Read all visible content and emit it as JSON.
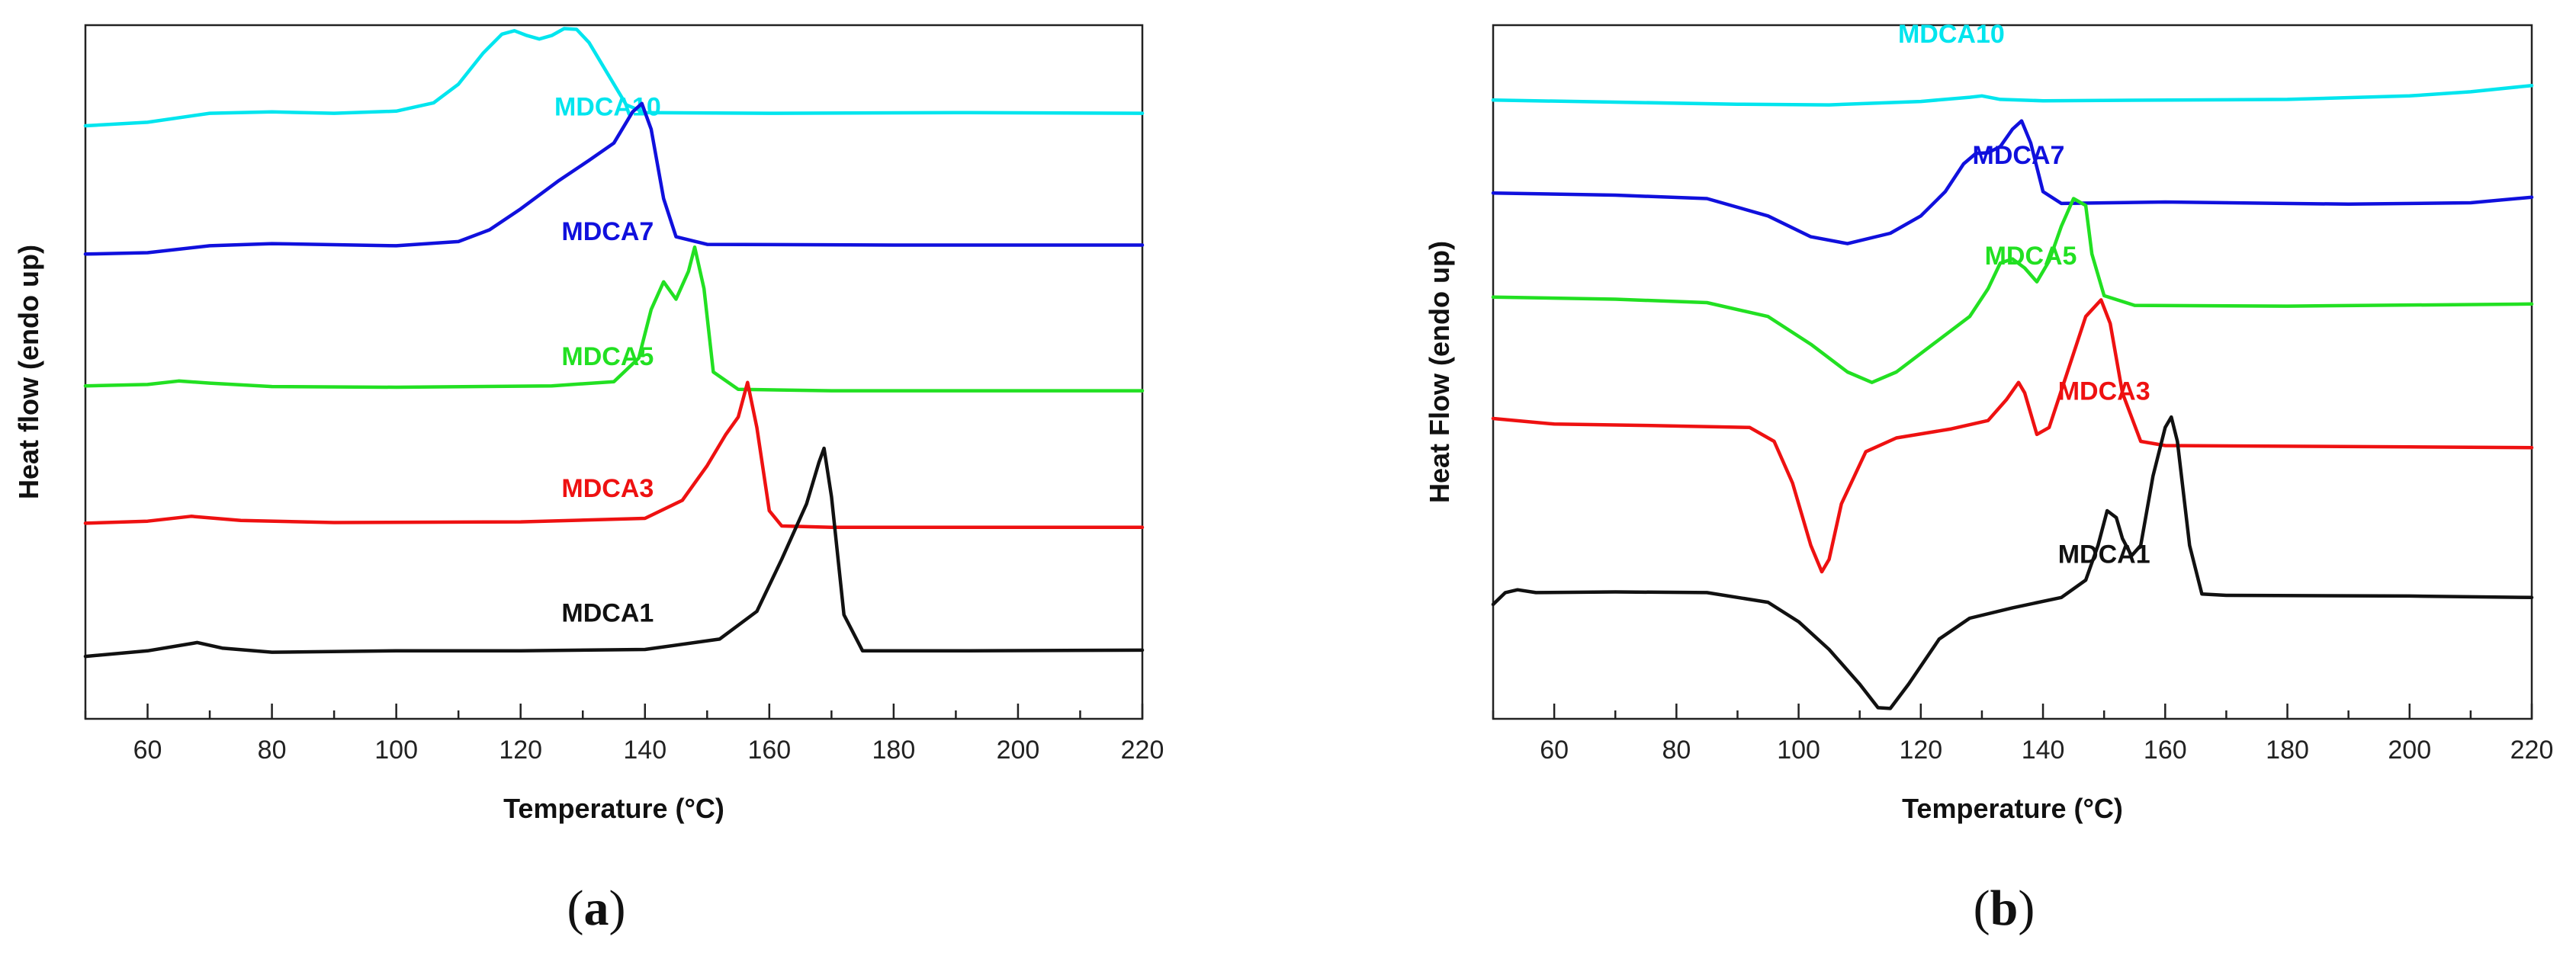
{
  "chart_data": [
    {
      "type": "line",
      "panel": "a",
      "caption": {
        "open": "(",
        "letter": "a",
        "close": ")"
      },
      "xlabel": "Temperature (°C)",
      "ylabel": "Heat flow (endo up)",
      "xlim": [
        50,
        220
      ],
      "ylim": [
        0,
        100
      ],
      "xticks": [
        60,
        80,
        100,
        120,
        140,
        160,
        180,
        200,
        220
      ],
      "grid": false,
      "series": [
        {
          "name": "MDCA10",
          "color": "#00e5ee",
          "label_at": [
            134,
            87
          ],
          "points": [
            [
              50,
              85.5
            ],
            [
              60,
              86
            ],
            [
              70,
              87.3
            ],
            [
              80,
              87.5
            ],
            [
              90,
              87.3
            ],
            [
              100,
              87.6
            ],
            [
              106,
              88.8
            ],
            [
              110,
              91.5
            ],
            [
              114,
              96
            ],
            [
              117,
              98.7
            ],
            [
              119,
              99.2
            ],
            [
              121,
              98.5
            ],
            [
              123,
              98
            ],
            [
              125,
              98.5
            ],
            [
              127,
              99.5
            ],
            [
              129,
              99.4
            ],
            [
              131,
              97.5
            ],
            [
              134,
              93
            ],
            [
              137,
              88.5
            ],
            [
              140,
              87.4
            ],
            [
              160,
              87.3
            ],
            [
              190,
              87.4
            ],
            [
              220,
              87.3
            ]
          ]
        },
        {
          "name": "MDCA7",
          "color": "#1010dd",
          "label_at": [
            134,
            69
          ],
          "points": [
            [
              50,
              67
            ],
            [
              60,
              67.2
            ],
            [
              70,
              68.2
            ],
            [
              80,
              68.5
            ],
            [
              100,
              68.2
            ],
            [
              110,
              68.8
            ],
            [
              115,
              70.5
            ],
            [
              120,
              73.5
            ],
            [
              126,
              77.5
            ],
            [
              131,
              80.5
            ],
            [
              135,
              83
            ],
            [
              138,
              87.5
            ],
            [
              139.5,
              88.7
            ],
            [
              141,
              85
            ],
            [
              143,
              75
            ],
            [
              145,
              69.5
            ],
            [
              150,
              68.4
            ],
            [
              180,
              68.3
            ],
            [
              220,
              68.3
            ]
          ]
        },
        {
          "name": "MDCA5",
          "color": "#22e022",
          "label_at": [
            134,
            51
          ],
          "points": [
            [
              50,
              48
            ],
            [
              60,
              48.2
            ],
            [
              65,
              48.7
            ],
            [
              70,
              48.4
            ],
            [
              80,
              47.9
            ],
            [
              100,
              47.8
            ],
            [
              125,
              48
            ],
            [
              135,
              48.6
            ],
            [
              139,
              52
            ],
            [
              141,
              59
            ],
            [
              143,
              63
            ],
            [
              145,
              60.5
            ],
            [
              147,
              64.5
            ],
            [
              148,
              68
            ],
            [
              149.5,
              62
            ],
            [
              151,
              50
            ],
            [
              155,
              47.5
            ],
            [
              170,
              47.3
            ],
            [
              220,
              47.3
            ]
          ]
        },
        {
          "name": "MDCA3",
          "color": "#ee1111",
          "label_at": [
            134,
            32
          ],
          "points": [
            [
              50,
              28.2
            ],
            [
              60,
              28.5
            ],
            [
              67,
              29.2
            ],
            [
              75,
              28.6
            ],
            [
              90,
              28.3
            ],
            [
              120,
              28.4
            ],
            [
              140,
              28.9
            ],
            [
              146,
              31.5
            ],
            [
              150,
              36.5
            ],
            [
              153,
              41
            ],
            [
              155,
              43.5
            ],
            [
              156.5,
              48.5
            ],
            [
              158,
              42
            ],
            [
              160,
              30
            ],
            [
              162,
              27.8
            ],
            [
              170,
              27.6
            ],
            [
              220,
              27.6
            ]
          ]
        },
        {
          "name": "MDCA1",
          "color": "#111111",
          "label_at": [
            134,
            14
          ],
          "points": [
            [
              50,
              9
            ],
            [
              60,
              9.8
            ],
            [
              68,
              11
            ],
            [
              72,
              10.2
            ],
            [
              80,
              9.6
            ],
            [
              100,
              9.8
            ],
            [
              120,
              9.8
            ],
            [
              140,
              10
            ],
            [
              152,
              11.5
            ],
            [
              158,
              15.5
            ],
            [
              162,
              23
            ],
            [
              166,
              31
            ],
            [
              168,
              37
            ],
            [
              168.8,
              39
            ],
            [
              170,
              32
            ],
            [
              172,
              15
            ],
            [
              175,
              9.8
            ],
            [
              190,
              9.8
            ],
            [
              220,
              9.9
            ]
          ]
        }
      ]
    },
    {
      "type": "line",
      "panel": "b",
      "caption": {
        "open": "(",
        "letter": "b",
        "close": ")"
      },
      "xlabel": "Temperature (°C)",
      "ylabel": "Heat Flow (endo up)",
      "xlim": [
        50,
        220
      ],
      "ylim": [
        0,
        100
      ],
      "xticks": [
        60,
        80,
        100,
        120,
        140,
        160,
        180,
        200,
        220
      ],
      "grid": false,
      "series": [
        {
          "name": "MDCA10",
          "color": "#00e5ee",
          "label_at": [
            125,
            97.5
          ],
          "points": [
            [
              50,
              89.2
            ],
            [
              70,
              88.9
            ],
            [
              90,
              88.6
            ],
            [
              105,
              88.5
            ],
            [
              120,
              89
            ],
            [
              128,
              89.6
            ],
            [
              130,
              89.8
            ],
            [
              133,
              89.3
            ],
            [
              140,
              89.1
            ],
            [
              180,
              89.3
            ],
            [
              200,
              89.8
            ],
            [
              210,
              90.4
            ],
            [
              220,
              91.3
            ]
          ]
        },
        {
          "name": "MDCA7",
          "color": "#1010dd",
          "label_at": [
            136,
            80
          ],
          "points": [
            [
              50,
              75.8
            ],
            [
              70,
              75.5
            ],
            [
              85,
              75
            ],
            [
              95,
              72.5
            ],
            [
              102,
              69.5
            ],
            [
              108,
              68.5
            ],
            [
              115,
              70
            ],
            [
              120,
              72.5
            ],
            [
              124,
              76
            ],
            [
              127,
              80
            ],
            [
              129,
              81.5
            ],
            [
              131,
              81.6
            ],
            [
              133,
              82.5
            ],
            [
              135,
              85
            ],
            [
              136.5,
              86.2
            ],
            [
              138,
              83
            ],
            [
              140,
              76
            ],
            [
              143,
              74.3
            ],
            [
              160,
              74.5
            ],
            [
              190,
              74.2
            ],
            [
              210,
              74.4
            ],
            [
              220,
              75.2
            ]
          ]
        },
        {
          "name": "MDCA5",
          "color": "#22e022",
          "label_at": [
            138,
            65.5
          ],
          "points": [
            [
              50,
              60.8
            ],
            [
              70,
              60.5
            ],
            [
              85,
              60
            ],
            [
              95,
              58
            ],
            [
              102,
              54
            ],
            [
              108,
              50
            ],
            [
              112,
              48.5
            ],
            [
              116,
              50
            ],
            [
              122,
              54
            ],
            [
              128,
              58
            ],
            [
              131,
              62
            ],
            [
              133,
              65.7
            ],
            [
              135,
              66.3
            ],
            [
              137,
              65
            ],
            [
              139,
              63
            ],
            [
              141,
              66
            ],
            [
              143,
              71
            ],
            [
              145,
              75
            ],
            [
              147,
              74
            ],
            [
              148,
              67
            ],
            [
              150,
              61
            ],
            [
              155,
              59.6
            ],
            [
              180,
              59.5
            ],
            [
              220,
              59.8
            ]
          ]
        },
        {
          "name": "MDCA3",
          "color": "#ee1111",
          "label_at": [
            150,
            46
          ],
          "points": [
            [
              50,
              43.3
            ],
            [
              60,
              42.5
            ],
            [
              75,
              42.3
            ],
            [
              92,
              42
            ],
            [
              96,
              40
            ],
            [
              99,
              34
            ],
            [
              102,
              25
            ],
            [
              103.8,
              21.2
            ],
            [
              105,
              23
            ],
            [
              107,
              31
            ],
            [
              111,
              38.5
            ],
            [
              116,
              40.5
            ],
            [
              125,
              41.8
            ],
            [
              131,
              43
            ],
            [
              134,
              46
            ],
            [
              136,
              48.5
            ],
            [
              137,
              47
            ],
            [
              139,
              41
            ],
            [
              141,
              42
            ],
            [
              144,
              50
            ],
            [
              147,
              58
            ],
            [
              149.5,
              60.4
            ],
            [
              151,
              57
            ],
            [
              153,
              47
            ],
            [
              156,
              40
            ],
            [
              160,
              39.4
            ],
            [
              200,
              39.2
            ],
            [
              220,
              39.1
            ]
          ]
        },
        {
          "name": "MDCA1",
          "color": "#111111",
          "label_at": [
            150,
            22.5
          ],
          "points": [
            [
              50,
              16.5
            ],
            [
              52,
              18.2
            ],
            [
              54,
              18.6
            ],
            [
              57,
              18.2
            ],
            [
              70,
              18.3
            ],
            [
              85,
              18.2
            ],
            [
              95,
              16.8
            ],
            [
              100,
              14
            ],
            [
              105,
              10
            ],
            [
              110,
              5
            ],
            [
              113,
              1.6
            ],
            [
              115,
              1.5
            ],
            [
              118,
              5
            ],
            [
              123,
              11.5
            ],
            [
              128,
              14.5
            ],
            [
              135,
              16
            ],
            [
              143,
              17.5
            ],
            [
              147,
              20
            ],
            [
              149,
              25
            ],
            [
              150.5,
              30
            ],
            [
              152,
              29
            ],
            [
              153,
              26
            ],
            [
              154.5,
              23.5
            ],
            [
              156,
              25
            ],
            [
              158,
              35
            ],
            [
              160,
              42
            ],
            [
              161,
              43.5
            ],
            [
              162,
              40
            ],
            [
              164,
              25
            ],
            [
              166,
              18
            ],
            [
              170,
              17.8
            ],
            [
              200,
              17.7
            ],
            [
              220,
              17.5
            ]
          ]
        }
      ]
    }
  ]
}
